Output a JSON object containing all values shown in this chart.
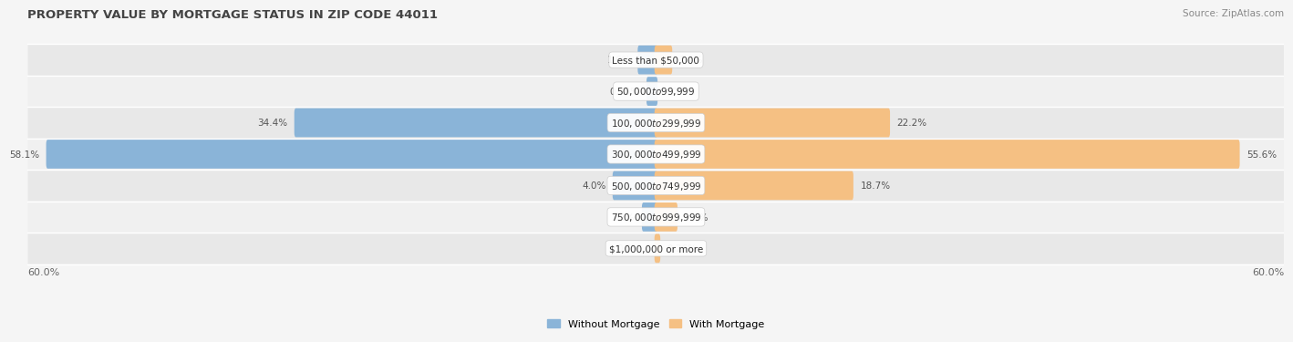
{
  "title": "PROPERTY VALUE BY MORTGAGE STATUS IN ZIP CODE 44011",
  "source": "Source: ZipAtlas.com",
  "categories": [
    "Less than $50,000",
    "$50,000 to $99,999",
    "$100,000 to $299,999",
    "$300,000 to $499,999",
    "$500,000 to $749,999",
    "$750,000 to $999,999",
    "$1,000,000 or more"
  ],
  "without_mortgage": [
    1.6,
    0.76,
    34.4,
    58.1,
    4.0,
    1.2,
    0.0
  ],
  "with_mortgage": [
    1.4,
    0.0,
    22.2,
    55.6,
    18.7,
    1.9,
    0.26
  ],
  "xlim": 60.0,
  "blue_color": "#8ab4d8",
  "orange_color": "#f5c083",
  "row_bg_even": "#e8e8e8",
  "row_bg_odd": "#f0f0f0",
  "fig_bg": "#f5f5f5",
  "title_fontsize": 9.5,
  "source_fontsize": 7.5,
  "label_fontsize": 7.5,
  "category_fontsize": 7.5,
  "axis_label_fontsize": 8,
  "legend_fontsize": 8
}
